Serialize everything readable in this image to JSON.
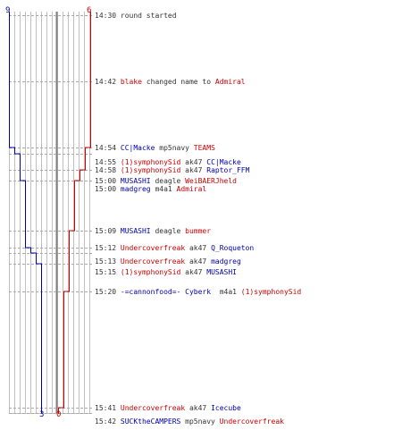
{
  "colors": {
    "blue": "#0000aa",
    "red": "#cc0000",
    "text": "#333333",
    "grid": "#c0c0c0",
    "dash": "#aaaaaa",
    "center": "#808080"
  },
  "chart_data": {
    "type": "line",
    "y_scale": "time",
    "y_start": "14:30",
    "y_end": "15:42",
    "series": [
      {
        "color": "blue",
        "start_count": 9,
        "end_count": 3,
        "steps": [
          {
            "time": "14:54",
            "count": 8
          },
          {
            "time": "14:55",
            "count": 7
          },
          {
            "time": "15:00",
            "count": 6
          },
          {
            "time": "15:12",
            "count": 5
          },
          {
            "time": "15:13",
            "count": 4
          },
          {
            "time": "15:15",
            "count": 3
          }
        ]
      },
      {
        "color": "red",
        "start_count": 6,
        "end_count": 0,
        "steps": [
          {
            "time": "14:54",
            "count": 5
          },
          {
            "time": "14:58",
            "count": 4
          },
          {
            "time": "15:00",
            "count": 3
          },
          {
            "time": "15:09",
            "count": 2
          },
          {
            "time": "15:20",
            "count": 1
          },
          {
            "time": "15:41",
            "count": 0
          }
        ]
      }
    ],
    "labels": {
      "blue_top": "9",
      "red_top": "6",
      "blue_bottom": "3",
      "red_bottom": "0"
    }
  },
  "events": [
    {
      "time": "14:30",
      "parts": [
        {
          "text": "round started",
          "color": "text"
        }
      ]
    },
    {
      "time": "14:42",
      "parts": [
        {
          "text": "blake",
          "color": "red"
        },
        {
          "text": " changed name to ",
          "color": "text"
        },
        {
          "text": "Admiral",
          "color": "red"
        }
      ]
    },
    {
      "time": "14:54",
      "parts": [
        {
          "text": "CC|Macke",
          "color": "blue"
        },
        {
          "text": " mp5navy ",
          "color": "text"
        },
        {
          "text": "TEAMS",
          "color": "red"
        }
      ]
    },
    {
      "time": "14:55",
      "parts": [
        {
          "text": "(1)symphonySid",
          "color": "red"
        },
        {
          "text": " ak47 ",
          "color": "text"
        },
        {
          "text": "CC|Macke",
          "color": "blue"
        }
      ]
    },
    {
      "time": "14:58",
      "parts": [
        {
          "text": "(1)symphonySid",
          "color": "red"
        },
        {
          "text": " ak47 ",
          "color": "text"
        },
        {
          "text": "Raptor_FFM",
          "color": "blue"
        }
      ]
    },
    {
      "time": "15:00",
      "parts": [
        {
          "text": "MUSASHI",
          "color": "blue"
        },
        {
          "text": " deagle ",
          "color": "text"
        },
        {
          "text": "WeiBAERJheld",
          "color": "red"
        }
      ]
    },
    {
      "time": "15:00",
      "parts": [
        {
          "text": "madgreg",
          "color": "blue"
        },
        {
          "text": " m4a1 ",
          "color": "text"
        },
        {
          "text": "Admiral",
          "color": "red"
        }
      ]
    },
    {
      "time": "15:09",
      "parts": [
        {
          "text": "MUSASHI",
          "color": "blue"
        },
        {
          "text": " deagle ",
          "color": "text"
        },
        {
          "text": "bummer",
          "color": "red"
        }
      ]
    },
    {
      "time": "15:12",
      "parts": [
        {
          "text": "Undercoverfreak",
          "color": "red"
        },
        {
          "text": " ak47 ",
          "color": "text"
        },
        {
          "text": "Q_Roqueton",
          "color": "blue"
        }
      ]
    },
    {
      "time": "15:13",
      "parts": [
        {
          "text": "Undercoverfreak",
          "color": "red"
        },
        {
          "text": " ak47 ",
          "color": "text"
        },
        {
          "text": "madgreg",
          "color": "blue"
        }
      ]
    },
    {
      "time": "15:15",
      "parts": [
        {
          "text": "(1)symphonySid",
          "color": "red"
        },
        {
          "text": " ak47 ",
          "color": "text"
        },
        {
          "text": "MUSASHI",
          "color": "blue"
        }
      ]
    },
    {
      "time": "15:20",
      "parts": [
        {
          "text": "-=cannonfood=- Cyberk",
          "color": "blue"
        },
        {
          "text": "  m4a1 ",
          "color": "text"
        },
        {
          "text": "(1)symphonySid",
          "color": "red"
        }
      ]
    },
    {
      "time": "15:41",
      "parts": [
        {
          "text": "Undercoverfreak",
          "color": "red"
        },
        {
          "text": " ak47 ",
          "color": "text"
        },
        {
          "text": "Icecube",
          "color": "blue"
        }
      ]
    },
    {
      "time": "15:42",
      "parts": [
        {
          "text": "SUCKtheCAMPERS",
          "color": "blue"
        },
        {
          "text": " mp5navy ",
          "color": "text"
        },
        {
          "text": "Undercoverfreak",
          "color": "red"
        }
      ]
    }
  ]
}
